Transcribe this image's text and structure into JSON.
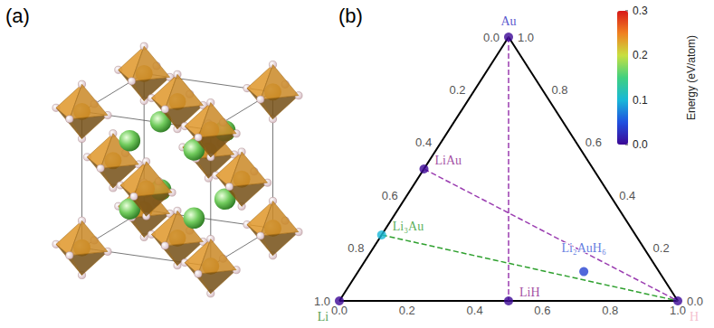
{
  "figure_labels": [
    "(a)",
    "(b)"
  ],
  "chart_data": {
    "type": "ternary",
    "corners": [
      "Li",
      "H",
      "Au"
    ],
    "ticks": [
      {
        "value": 0,
        "label": "0.0"
      },
      0.2,
      0.4,
      0.6,
      0.8,
      {
        "value": 1,
        "label": "1.0"
      }
    ],
    "points": [
      {
        "name": "Au",
        "composition": [
          0,
          0,
          1
        ],
        "energy": 0,
        "color": "#2b2bbf"
      },
      {
        "name": "LiAu",
        "composition": [
          0.5,
          0,
          0.5
        ],
        "energy": 0,
        "color": "#8b1a8b"
      },
      {
        "name": "Li₃Au",
        "composition": [
          0.75,
          0,
          0.25
        ],
        "energy": 0.1,
        "color": "#2e9a2e"
      },
      {
        "name": "LiH",
        "composition": [
          0.5,
          0.5,
          0
        ],
        "energy": 0,
        "color": "#8b1a8b"
      },
      {
        "name": "Li₂AuH₆",
        "composition": [
          0.2222,
          0.6667,
          0.1111
        ],
        "energy": 0.04,
        "color": "#3a5bd8"
      },
      {
        "name": "Li",
        "composition": [
          1,
          0,
          0
        ],
        "energy": 0,
        "color": "#1f8a1f"
      },
      {
        "name": "H",
        "composition": [
          0,
          1,
          0
        ],
        "energy": 0,
        "color": "#f2b0c2"
      }
    ],
    "lines": [
      {
        "from": "Au",
        "to": "LiH",
        "color": "#9a3cb0",
        "line_style": "dashed"
      },
      {
        "from": "LiAu",
        "to": "H",
        "color": "#9a3cb0",
        "line_style": "dashed"
      },
      {
        "from": "Li₃Au",
        "to": "H",
        "color": "#2ea02e",
        "line_style": "dashed"
      }
    ],
    "colorbar": {
      "title": "Energy (eV/atom)",
      "range": [
        0,
        0.3
      ],
      "ticks": [
        {
          "value": 0,
          "label": "0.0"
        },
        0.1,
        0.2,
        0.3
      ]
    }
  }
}
